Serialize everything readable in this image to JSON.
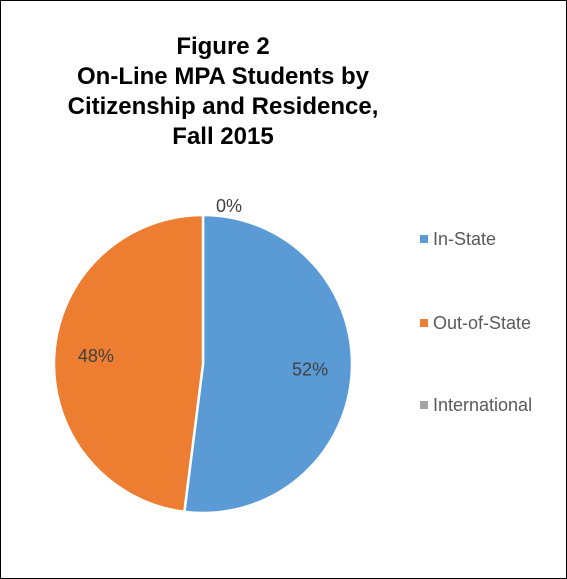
{
  "chart_data": {
    "type": "pie",
    "title_lines": [
      "Figure 2",
      "On-Line MPA Students by",
      "Citizenship and Residence,",
      "Fall 2015"
    ],
    "slices": [
      {
        "name": "In-State",
        "value": 52,
        "label": "52%",
        "color": "#5b9bd5"
      },
      {
        "name": "Out-of-State",
        "value": 48,
        "label": "48%",
        "color": "#ed7d31"
      },
      {
        "name": "International",
        "value": 0,
        "label": "0%",
        "color": "#a5a5a5"
      }
    ],
    "legend_position": "right",
    "label_color": "#404040",
    "legend_text_color": "#595959"
  }
}
